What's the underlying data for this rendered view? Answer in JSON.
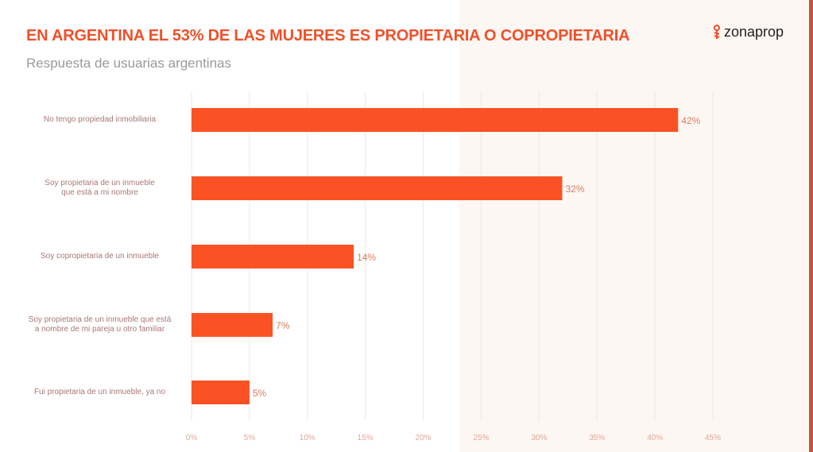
{
  "header": {
    "title": "EN ARGENTINA EL 53% DE LAS MUJERES ES PROPIETARIA O COPROPIETARIA",
    "subtitle": "Respuesta de usuarias argentinas",
    "logo": "zonaprop"
  },
  "colors": {
    "bar": "#fa5224",
    "title": "#f0502a"
  },
  "chart_data": {
    "type": "bar",
    "orientation": "horizontal",
    "title": "EN ARGENTINA EL 53% DE LAS MUJERES ES PROPIETARIA O COPROPIETARIA",
    "categories": [
      "No tengo propiedad inmobiliaria",
      "Soy propietaria de un inmueble que está a mi nombre",
      "Soy copropietaria de un inmueble",
      "Soy propietaria de un inmueble que está a nombre de mi pareja u otro familiar",
      "Fui propietaria de un inmueble, ya no"
    ],
    "category_lines": [
      [
        "No tengo propiedad inmobiliaria"
      ],
      [
        "Soy propietaria de un inmueble",
        "que está a mi nombre"
      ],
      [
        "Soy copropietaria de un inmueble"
      ],
      [
        "Soy propietaria de un inmueble que está",
        "a nombre de mi pareja u otro familiar"
      ],
      [
        "Fui propietaria de un inmueble, ya no"
      ]
    ],
    "values": [
      42,
      32,
      14,
      7,
      5
    ],
    "data_labels": [
      "42%",
      "32%",
      "14%",
      "7%",
      "5%"
    ],
    "xlim": [
      0,
      45
    ],
    "xticks": [
      "0%",
      "5%",
      "10%",
      "15%",
      "20%",
      "25%",
      "30%",
      "35%",
      "40%",
      "45%"
    ],
    "grid": true
  }
}
